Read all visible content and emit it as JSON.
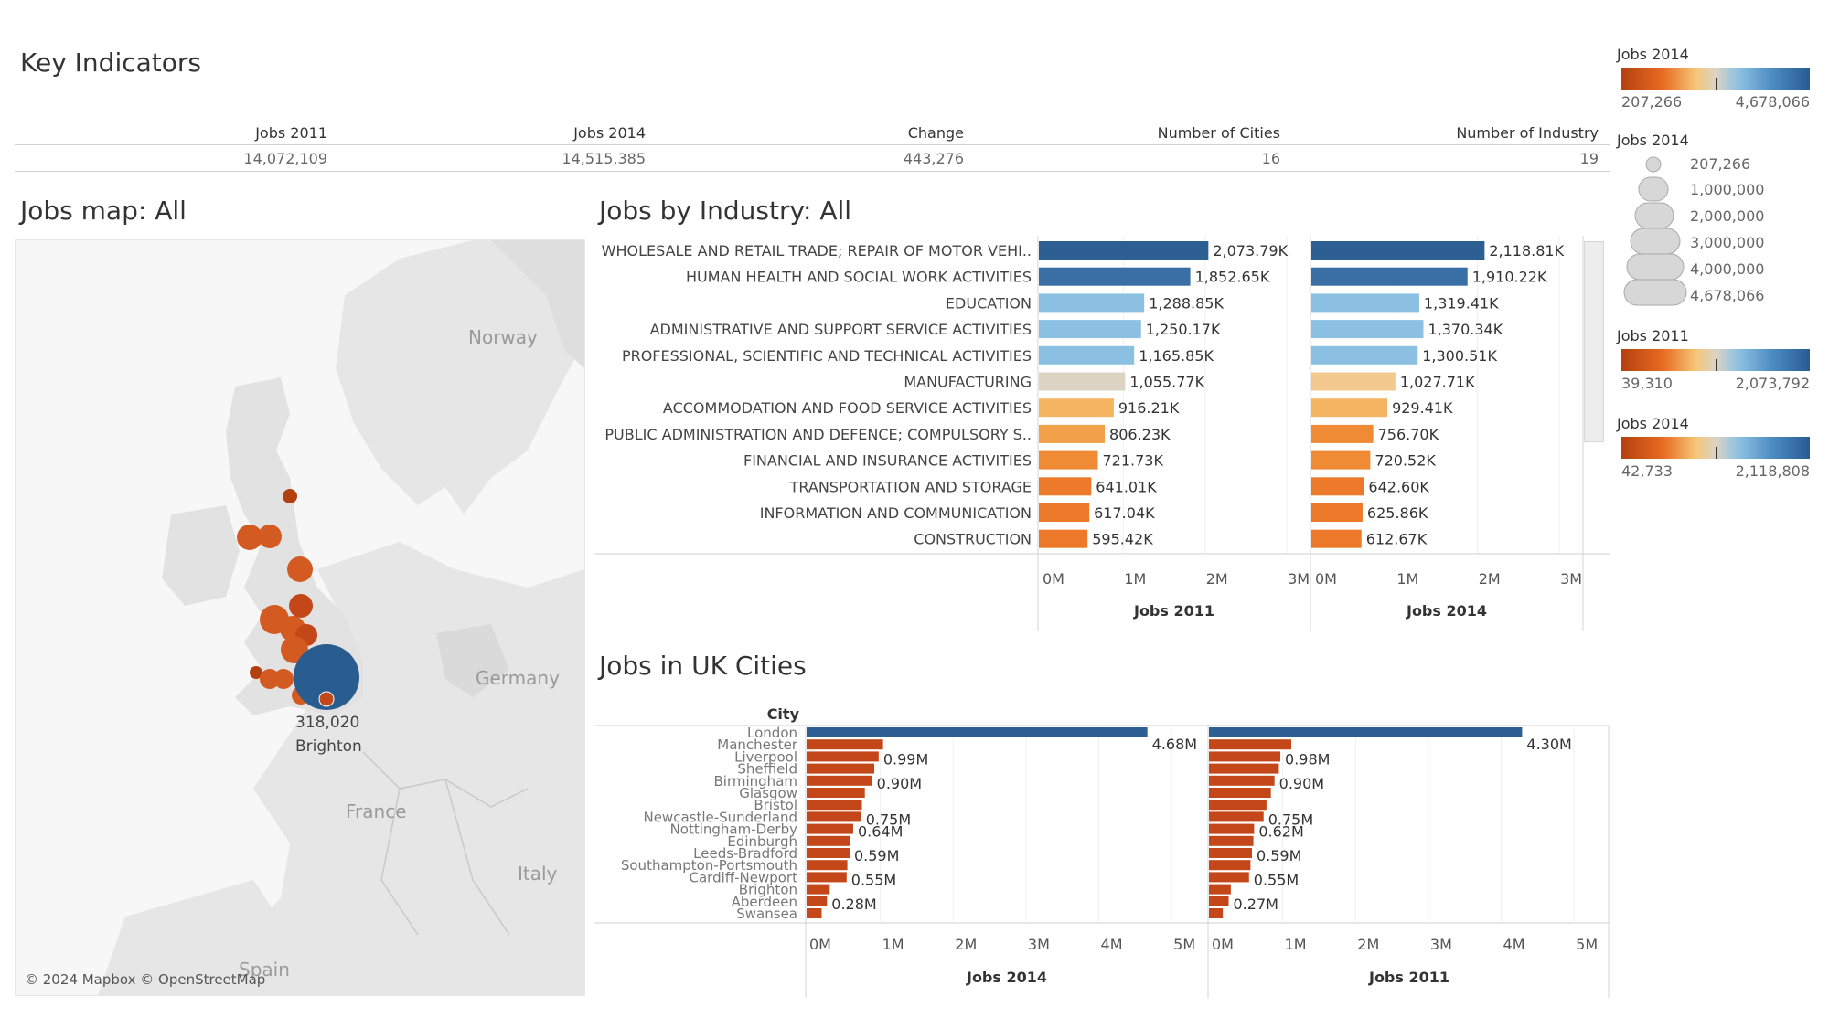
{
  "header": {
    "title": "Key Indicators"
  },
  "kpis": [
    {
      "label": "Jobs 2011",
      "value": "14,072,109"
    },
    {
      "label": "Jobs 2014",
      "value": "14,515,385"
    },
    {
      "label": "Change",
      "value": "443,276"
    },
    {
      "label": "Number of Cities",
      "value": "16"
    },
    {
      "label": "Number of Industry",
      "value": "19"
    }
  ],
  "map": {
    "title": "Jobs map: All",
    "countries": [
      "Norway",
      "Germany",
      "France",
      "Italy",
      "Spain"
    ],
    "tooltip_value": "318,020",
    "tooltip_city": "Brighton",
    "attribution": "© 2024 Mapbox © OpenStreetMap"
  },
  "industry": {
    "title": "Jobs by Industry: All",
    "panel1_label": "Jobs 2011",
    "panel2_label": "Jobs 2014",
    "ticks": [
      "0M",
      "1M",
      "2M",
      "3M"
    ]
  },
  "cities": {
    "title": "Jobs in UK Cities",
    "header": "City",
    "panel1_label": "Jobs 2014",
    "panel2_label": "Jobs 2011",
    "ticks": [
      "0M",
      "1M",
      "2M",
      "3M",
      "4M",
      "5M"
    ]
  },
  "legends": {
    "color1": {
      "title": "Jobs 2014",
      "min": "207,266",
      "max": "4,678,066"
    },
    "size": {
      "title": "Jobs 2014",
      "items": [
        "207,266",
        "1,000,000",
        "2,000,000",
        "3,000,000",
        "4,000,000",
        "4,678,066"
      ]
    },
    "color2": {
      "title": "Jobs 2011",
      "min": "39,310",
      "max": "2,073,792"
    },
    "color3": {
      "title": "Jobs 2014",
      "min": "42,733",
      "max": "2,118,808"
    }
  },
  "colors": {
    "dark_blue": "#2e5f93",
    "mid_blue": "#8cc0e3",
    "beige": "#dcd3c3",
    "light_orange": "#f5b461",
    "orange": "#ef8a35",
    "dark_orange": "#c4471a",
    "map_blue": "#2a5d8f"
  },
  "chart_data": [
    {
      "type": "bar",
      "title": "Jobs by Industry: All",
      "categories": [
        "WHOLESALE AND RETAIL TRADE; REPAIR OF MOTOR VEHI..",
        "HUMAN HEALTH AND SOCIAL WORK ACTIVITIES",
        "EDUCATION",
        "ADMINISTRATIVE AND SUPPORT SERVICE ACTIVITIES",
        "PROFESSIONAL, SCIENTIFIC AND TECHNICAL ACTIVITIES",
        "MANUFACTURING",
        "ACCOMMODATION AND FOOD SERVICE ACTIVITIES",
        "PUBLIC ADMINISTRATION AND DEFENCE; COMPULSORY S..",
        "FINANCIAL AND INSURANCE ACTIVITIES",
        "TRANSPORTATION AND STORAGE",
        "INFORMATION AND COMMUNICATION",
        "CONSTRUCTION"
      ],
      "series": [
        {
          "name": "Jobs 2011",
          "values": [
            2073790,
            1852650,
            1288850,
            1250170,
            1165850,
            1055770,
            916210,
            806230,
            721730,
            641010,
            617040,
            595420
          ],
          "labels": [
            "2,073.79K",
            "1,852.65K",
            "1,288.85K",
            "1,250.17K",
            "1,165.85K",
            "1,055.77K",
            "916.21K",
            "806.23K",
            "721.73K",
            "641.01K",
            "617.04K",
            "595.42K"
          ],
          "colors": [
            "#2e5f93",
            "#3a6fa5",
            "#8cc0e3",
            "#8cc0e3",
            "#8cc0e3",
            "#dcd3c3",
            "#f5b461",
            "#f2a04a",
            "#ef8a35",
            "#ec7a2a",
            "#ec7a2a",
            "#ec7a2a"
          ]
        },
        {
          "name": "Jobs 2014",
          "values": [
            2118810,
            1910220,
            1319410,
            1370340,
            1300510,
            1027710,
            929410,
            756700,
            720520,
            642600,
            625860,
            612670
          ],
          "labels": [
            "2,118.81K",
            "1,910.22K",
            "1,319.41K",
            "1,370.34K",
            "1,300.51K",
            "1,027.71K",
            "929.41K",
            "756.70K",
            "720.52K",
            "642.60K",
            "625.86K",
            "612.67K"
          ],
          "colors": [
            "#2e5f93",
            "#3a6fa5",
            "#8cc0e3",
            "#8cc0e3",
            "#8cc0e3",
            "#f3c98f",
            "#f5b461",
            "#ef8a35",
            "#ef8a35",
            "#ec7a2a",
            "#ec7a2a",
            "#ec7a2a"
          ]
        }
      ],
      "xlim": [
        0,
        3200000
      ]
    },
    {
      "type": "bar",
      "title": "Jobs in UK Cities",
      "categories": [
        "London",
        "Manchester",
        "Liverpool",
        "Sheffield",
        "Birmingham",
        "Glasgow",
        "Bristol",
        "Newcastle-Sunderland",
        "Nottingham-Derby",
        "Edinburgh",
        "Leeds-Bradford",
        "Southampton-Portsmouth",
        "Cardiff-Newport",
        "Brighton",
        "Aberdeen",
        "Swansea"
      ],
      "series": [
        {
          "name": "Jobs 2014",
          "values": [
            4680000,
            1050000,
            990000,
            930000,
            900000,
            800000,
            760000,
            750000,
            640000,
            600000,
            590000,
            560000,
            550000,
            318020,
            280000,
            207266
          ],
          "labels": [
            "4.68M",
            "",
            "0.99M",
            "",
            "0.90M",
            "",
            "",
            "0.75M",
            "0.64M",
            "",
            "0.59M",
            "",
            "0.55M",
            "",
            "0.28M",
            ""
          ]
        },
        {
          "name": "Jobs 2011",
          "values": [
            4300000,
            1130000,
            980000,
            960000,
            900000,
            850000,
            790000,
            750000,
            620000,
            610000,
            590000,
            570000,
            550000,
            300000,
            270000,
            190000
          ],
          "labels": [
            "4.30M",
            "",
            "0.98M",
            "",
            "0.90M",
            "",
            "",
            "0.75M",
            "0.62M",
            "",
            "0.59M",
            "",
            "0.55M",
            "",
            "0.27M",
            ""
          ]
        }
      ],
      "xlim": [
        0,
        5400000
      ]
    }
  ]
}
